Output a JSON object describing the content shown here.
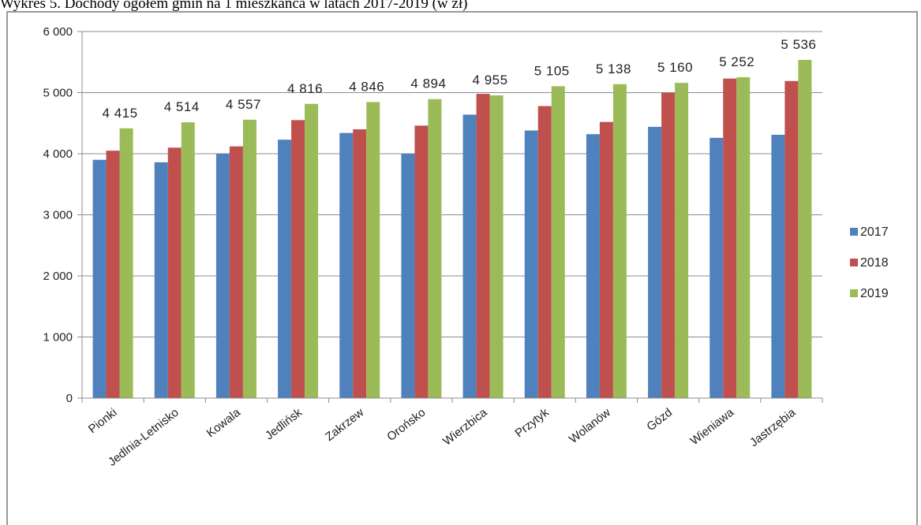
{
  "caption": "Wykres 5. Dochody ogółem gmin na 1 mieszkańca w latach 2017-2019 (w zł)",
  "chart_data": {
    "type": "bar",
    "title": "Wykres 5. Dochody ogółem gmin na 1 mieszkańca w latach 2017-2019 (w zł)",
    "xlabel": "",
    "ylabel": "",
    "ylim": [
      0,
      6000
    ],
    "yticks": [
      0,
      1000,
      2000,
      3000,
      4000,
      5000,
      6000
    ],
    "ytick_labels": [
      "0",
      "1 000",
      "2 000",
      "3 000",
      "4 000",
      "5 000",
      "6 000"
    ],
    "grid": true,
    "legend_position": "right",
    "categories": [
      "Pionki",
      "Jedlnia-Letnisko",
      "Kowala",
      "Jedlińsk",
      "Zakrzew",
      "Orońsko",
      "Wierzbica",
      "Przytyk",
      "Wolanów",
      "Gózd",
      "Wieniawa",
      "Jastrzębia"
    ],
    "series": [
      {
        "name": "2017",
        "color": "#4f81bd",
        "values": [
          3900,
          3860,
          4000,
          4230,
          4340,
          4000,
          4640,
          4380,
          4320,
          4440,
          4260,
          4310
        ]
      },
      {
        "name": "2018",
        "color": "#c0504d",
        "values": [
          4050,
          4100,
          4120,
          4550,
          4400,
          4460,
          4980,
          4780,
          4520,
          5000,
          5230,
          5190
        ]
      },
      {
        "name": "2019",
        "color": "#9bbb59",
        "values": [
          4415,
          4514,
          4557,
          4816,
          4846,
          4894,
          4955,
          5105,
          5138,
          5160,
          5252,
          5536
        ]
      }
    ],
    "data_labels": {
      "series": "2019",
      "labels": [
        "4 415",
        "4 514",
        "4 557",
        "4 816",
        "4 846",
        "4 894",
        "4 955",
        "5 105",
        "5 138",
        "5 160",
        "5 252",
        "5 536"
      ]
    }
  }
}
